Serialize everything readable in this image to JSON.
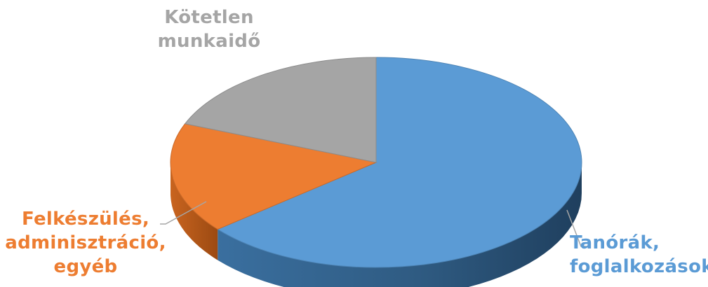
{
  "chart_data": {
    "type": "pie",
    "style": "3d",
    "legend": "none",
    "slices": [
      {
        "label_lines": [
          "Tanórák,",
          "foglalkozások"
        ],
        "value": 64,
        "color": "#5b9bd5",
        "label_color": "#5b9bd5"
      },
      {
        "label_lines": [
          "Felkészülés,",
          "adminisztráció,",
          "egyéb"
        ],
        "value": 17,
        "color": "#ed7d31",
        "label_color": "#ed7d31"
      },
      {
        "label_lines": [
          "Kötetlen",
          "munkaidő"
        ],
        "value": 19,
        "color": "#a5a5a5",
        "label_color": "#a5a5a5"
      }
    ]
  }
}
